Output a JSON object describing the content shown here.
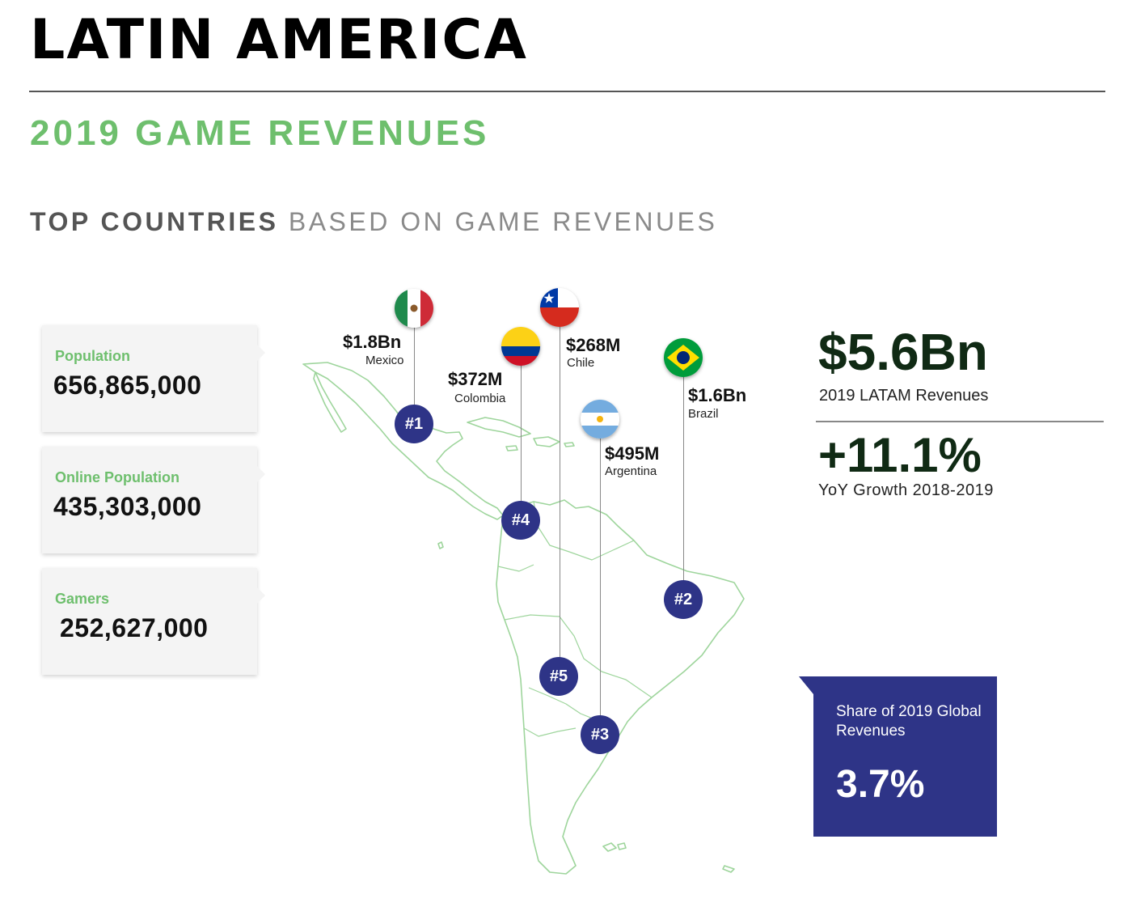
{
  "header": {
    "title": "LATIN AMERICA",
    "subtitle": "2019 GAME REVENUES",
    "section_heading_strong": "TOP COUNTRIES",
    "section_heading_rest": " BASED ON GAME REVENUES"
  },
  "stats": [
    {
      "label": "Population",
      "value": "656,865,000"
    },
    {
      "label": "Online Population",
      "value": "435,303,000"
    },
    {
      "label": "Gamers",
      "value": "252,627,000"
    }
  ],
  "countries": [
    {
      "rank": "#1",
      "name": "Mexico",
      "revenue": "$1.8Bn"
    },
    {
      "rank": "#2",
      "name": "Brazil",
      "revenue": "$1.6Bn"
    },
    {
      "rank": "#3",
      "name": "Argentina",
      "revenue": "$495M"
    },
    {
      "rank": "#4",
      "name": "Colombia",
      "revenue": "$372M"
    },
    {
      "rank": "#5",
      "name": "Chile",
      "revenue": "$268M"
    }
  ],
  "kpis": {
    "total_revenue": "$5.6Bn",
    "total_revenue_label": "2019 LATAM Revenues",
    "yoy_growth": "+11.1%",
    "yoy_growth_label": "YoY Growth 2018-2019"
  },
  "share": {
    "label": "Share of 2019 Global Revenues",
    "value": "3.7%"
  },
  "colors": {
    "accent_green": "#6ebf6d",
    "navy": "#2e3487",
    "map_outline": "#9ed59c"
  },
  "icons": [
    "mexico-flag-icon",
    "colombia-flag-icon",
    "chile-flag-icon",
    "argentina-flag-icon",
    "brazil-flag-icon"
  ]
}
